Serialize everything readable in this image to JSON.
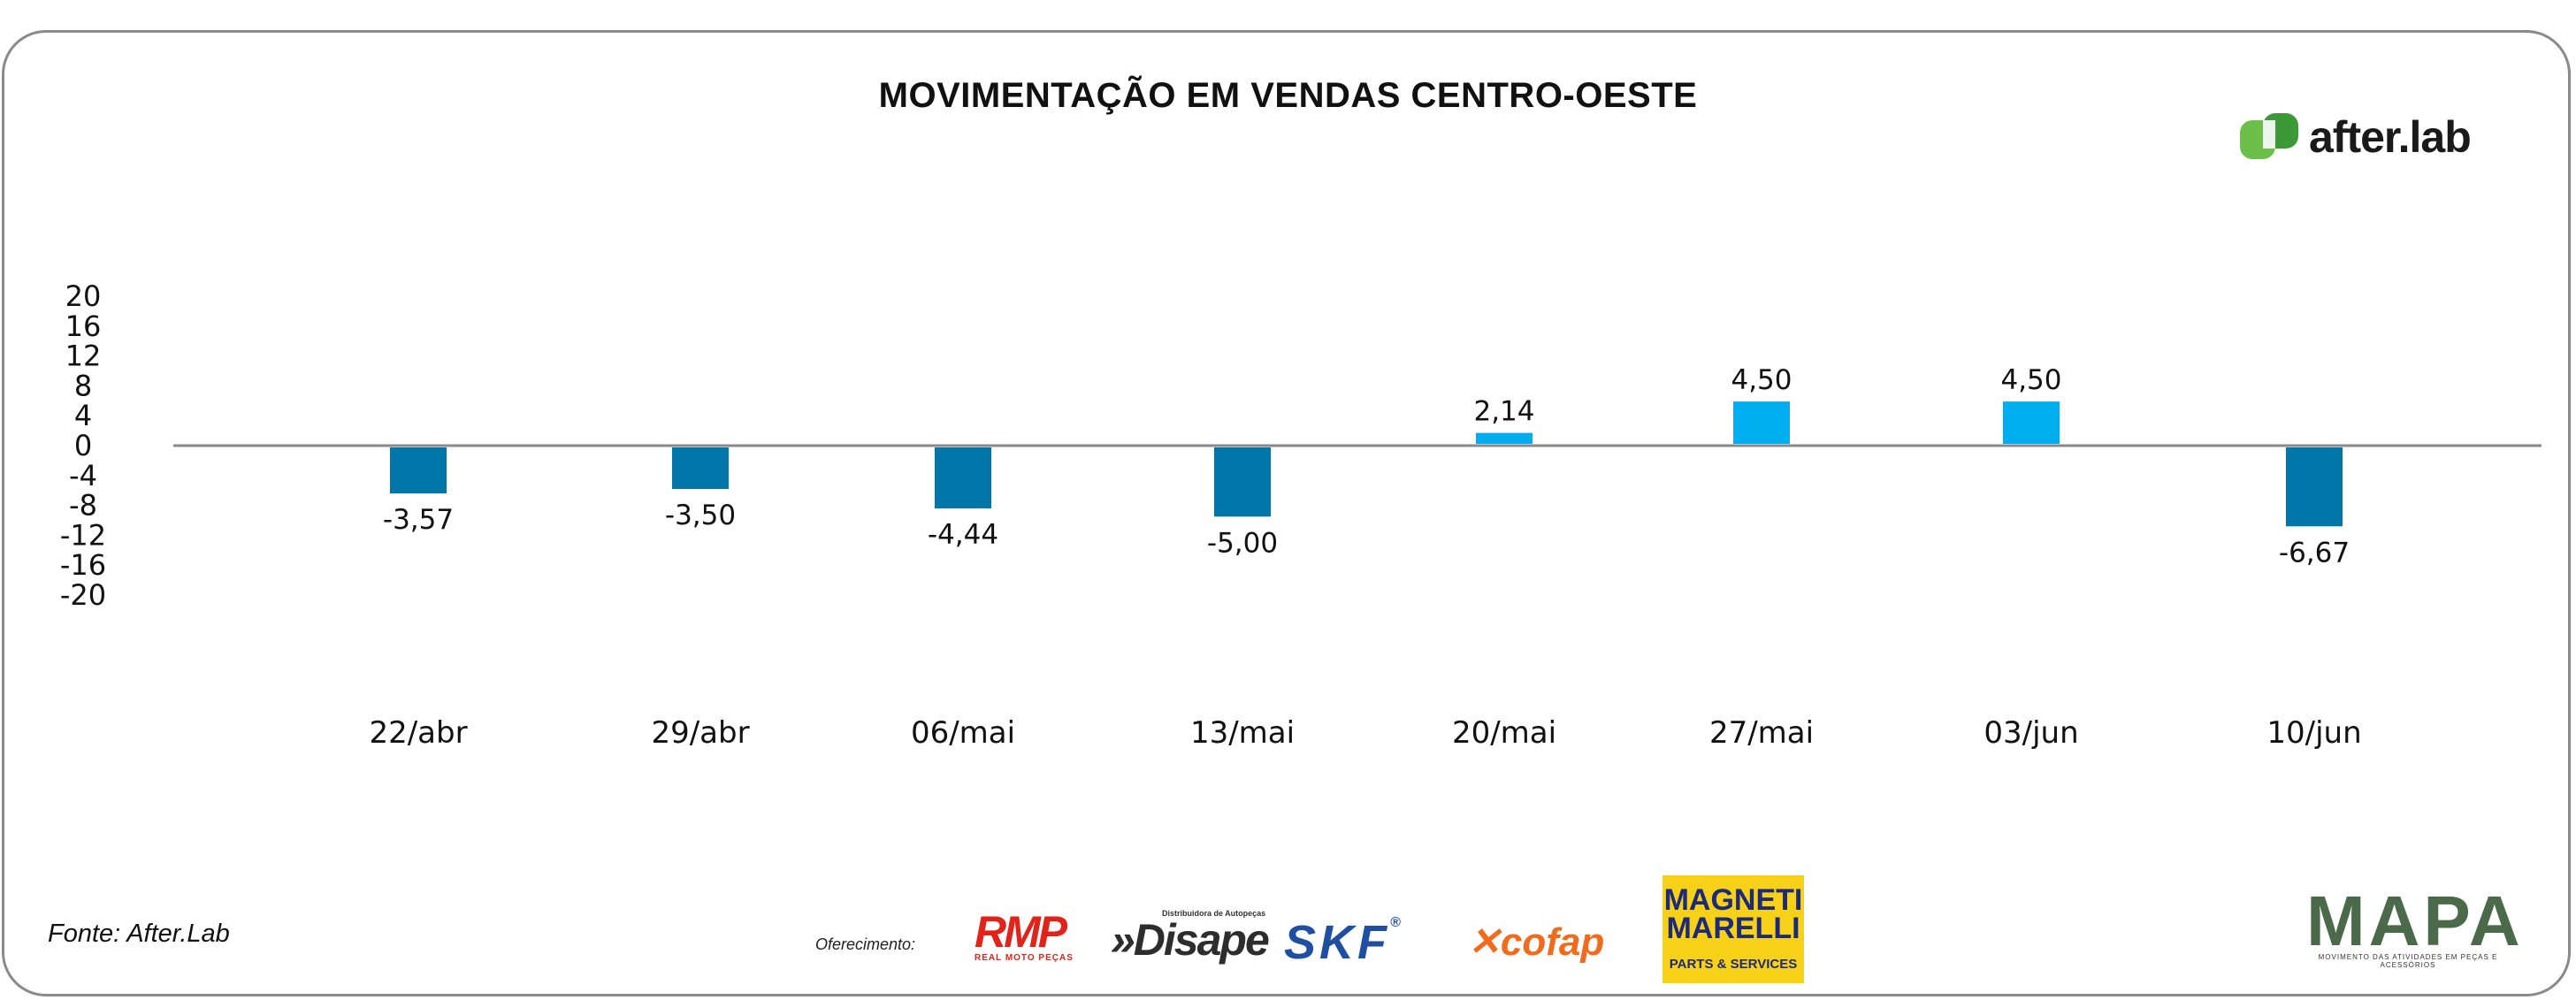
{
  "colors": {
    "negative_bar": "#0077a8",
    "positive_bar": "#00aeef",
    "axis": "#888888",
    "frame": "#8a8a8a"
  },
  "chart_data": {
    "type": "bar",
    "title": "MOVIMENTAÇÃO EM VENDAS CENTRO-OESTE",
    "categories": [
      "22/abr",
      "29/abr",
      "06/mai",
      "13/mai",
      "20/mai",
      "27/mai",
      "03/jun",
      "10/jun"
    ],
    "values": [
      -3.57,
      -3.5,
      -4.44,
      -5.0,
      2.14,
      4.5,
      4.5,
      -6.67
    ],
    "bar_heights_on_axis": [
      -6.4,
      -5.8,
      -8.4,
      -9.5,
      1.7,
      5.9,
      5.9,
      -10.8
    ],
    "value_labels": [
      "-3,57",
      "-3,50",
      "-4,44",
      "-5,00",
      "2,14",
      "4,50",
      "4,50",
      "-6,67"
    ],
    "y_ticks": [
      20,
      16,
      12,
      8,
      4,
      0,
      -4,
      -8,
      -12,
      -16,
      -20
    ],
    "ylim": [
      -20,
      20
    ],
    "xlabel": "",
    "ylabel": "",
    "grid": false,
    "legend": "none"
  },
  "footer": {
    "source": "Fonte: After.Lab",
    "sponsor_label": "Oferecimento:"
  },
  "logos": {
    "afterlab": "after.lab",
    "rmp": "RMP",
    "rmp_sub": "REAL MOTO PEÇAS",
    "disape": "»Disape",
    "disape_sub": "Distribuidora de Autopeças",
    "skf": "SKF",
    "skf_mark": "®",
    "cofap": "cofap",
    "magneti_1": "MAGNETI",
    "magneti_2": "MARELLI",
    "magneti_sub": "PARTS & SERVICES",
    "mapa": "MAPA",
    "mapa_sub": "MOVIMENTO DAS ATIVIDADES EM PEÇAS E ACESSÓRIOS"
  }
}
